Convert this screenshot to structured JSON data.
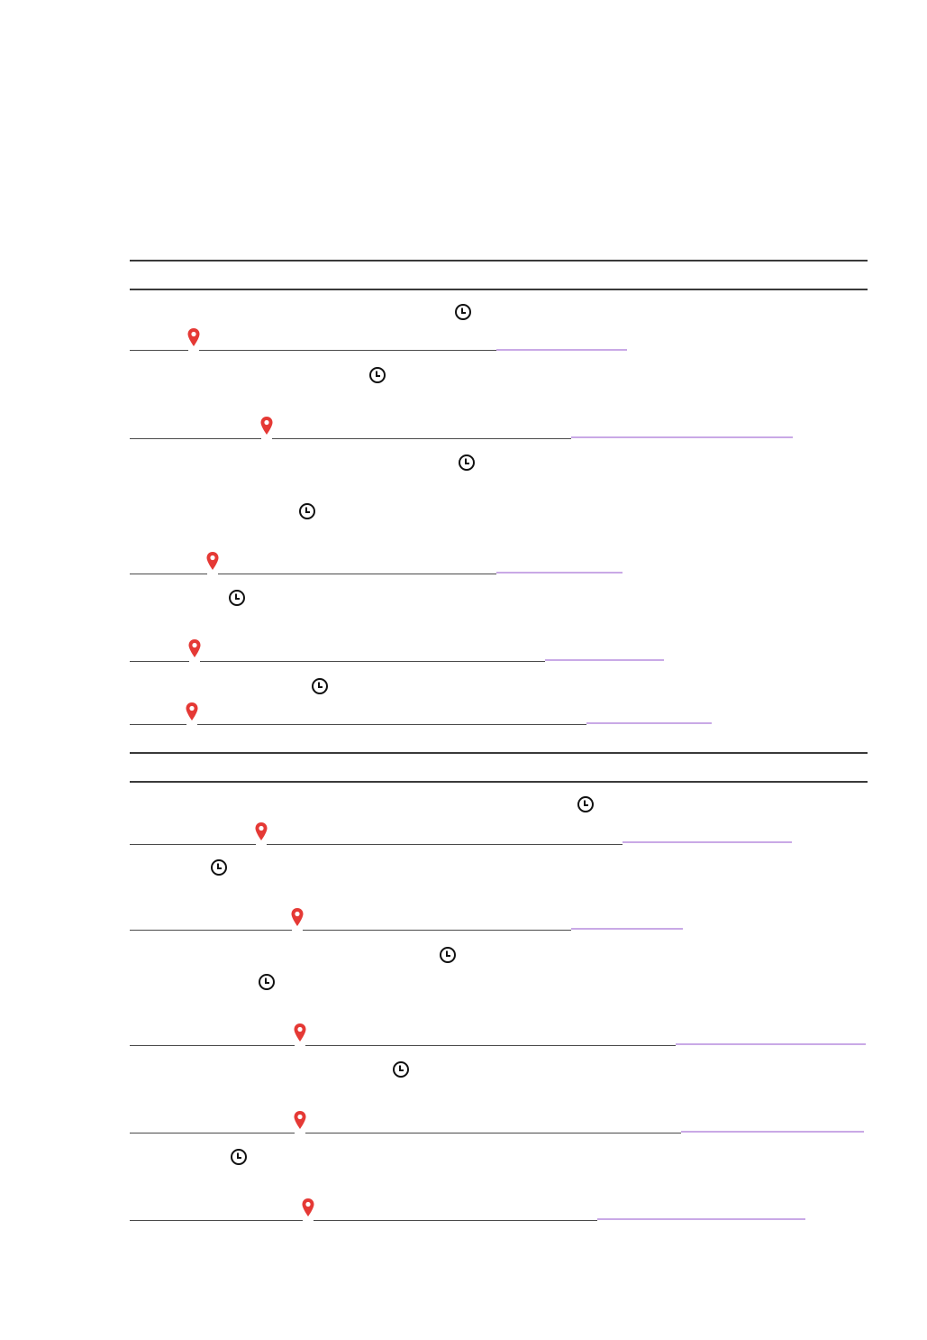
{
  "document": {
    "sections": [
      {
        "entries": [
          {
            "icons": [
              "clock-icon",
              "location-pin-icon"
            ]
          },
          {
            "icons": [
              "clock-icon",
              "location-pin-icon"
            ]
          },
          {
            "icons": [
              "clock-icon"
            ]
          },
          {
            "icons": [
              "clock-icon",
              "location-pin-icon"
            ]
          },
          {
            "icons": [
              "clock-icon",
              "location-pin-icon"
            ]
          },
          {
            "icons": [
              "clock-icon",
              "location-pin-icon"
            ]
          }
        ]
      },
      {
        "entries": [
          {
            "icons": [
              "clock-icon",
              "location-pin-icon"
            ]
          },
          {
            "icons": [
              "clock-icon",
              "location-pin-icon"
            ]
          },
          {
            "icons": [
              "clock-icon"
            ]
          },
          {
            "icons": [
              "clock-icon",
              "location-pin-icon"
            ]
          },
          {
            "icons": [
              "clock-icon",
              "location-pin-icon"
            ]
          },
          {
            "icons": [
              "clock-icon",
              "location-pin-icon"
            ]
          }
        ]
      }
    ],
    "colors": {
      "rule": "#3a3a3a",
      "underline": "#4a4a4a",
      "link_underline": "#c9a9e6",
      "pin": "#e53935",
      "clock": "#111111"
    }
  }
}
